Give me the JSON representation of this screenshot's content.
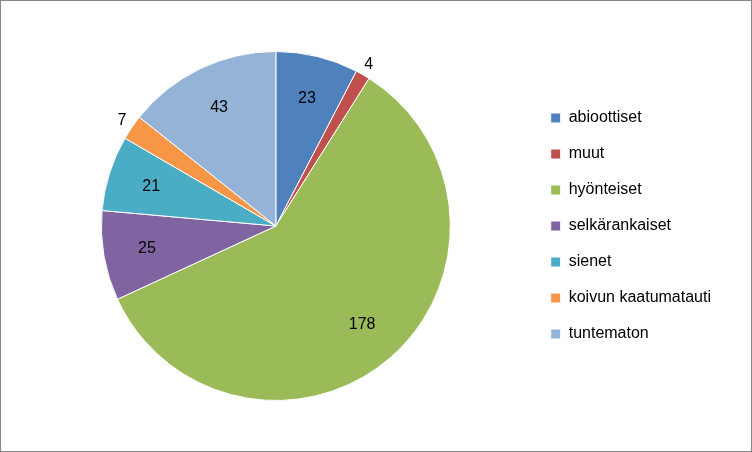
{
  "chart_data": {
    "type": "pie",
    "categories": [
      "abioottiset",
      "muut",
      "hyönteiset",
      "selkärankaiset",
      "sienet",
      "koivun kaatumatauti",
      "tuntematon"
    ],
    "values": [
      23,
      4,
      178,
      25,
      21,
      7,
      43
    ],
    "colors": [
      "#4f81bd",
      "#c0504d",
      "#9bbb59",
      "#8064a2",
      "#4bacc6",
      "#f79646",
      "#95b3d7"
    ],
    "legend": "right",
    "data_labels": true
  }
}
